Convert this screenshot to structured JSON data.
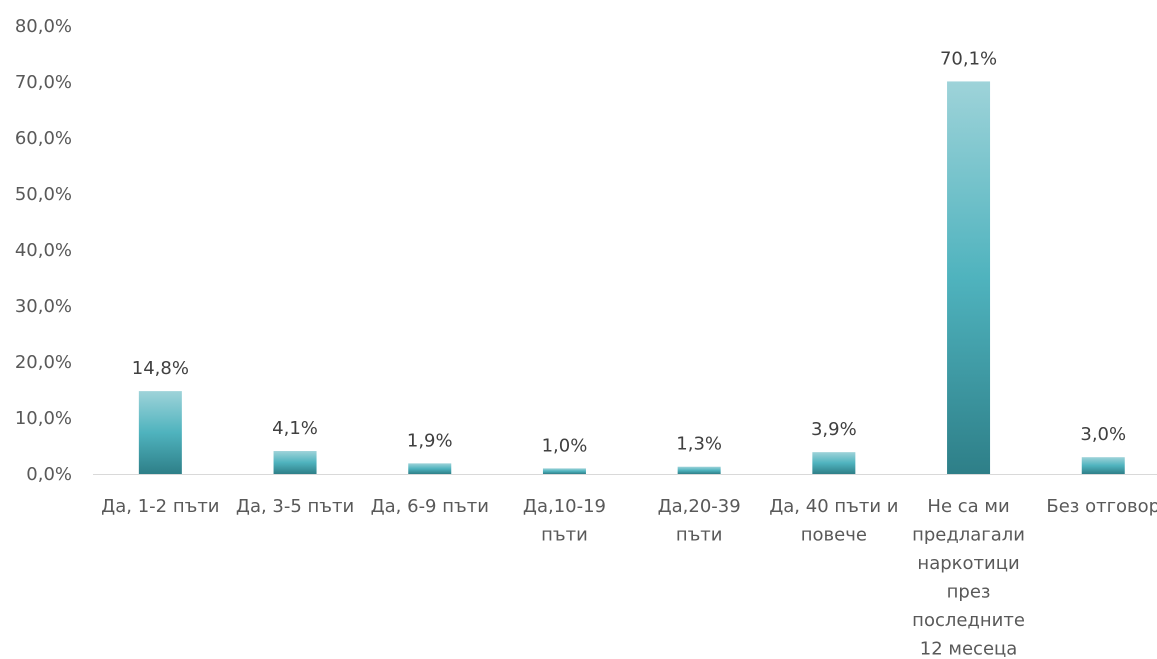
{
  "chart_data": {
    "type": "bar",
    "title": "",
    "xlabel": "",
    "ylabel": "",
    "ylim": [
      0,
      80
    ],
    "yticks": [
      "0,0%",
      "10,0%",
      "20,0%",
      "30,0%",
      "40,0%",
      "50,0%",
      "60,0%",
      "70,0%",
      "80,0%"
    ],
    "grid": false,
    "legend": "none",
    "categories": [
      "Да, 1-2 пъти",
      "Да, 3-5 пъти",
      "Да, 6-9 пъти",
      "Да,10-19 пъти",
      "Да,20-39 пъти",
      "Да, 40 пъти и повече",
      "Не са ми предлагали наркотици през последните 12 месеца",
      "Без отговор"
    ],
    "category_lines": [
      [
        "Да, 1-2 пъти"
      ],
      [
        "Да, 3-5 пъти"
      ],
      [
        "Да, 6-9 пъти"
      ],
      [
        "Да,10-19",
        "пъти"
      ],
      [
        "Да,20-39",
        "пъти"
      ],
      [
        "Да, 40 пъти и",
        "повече"
      ],
      [
        "Не са ми",
        "предлагали",
        "наркотици",
        "през",
        "последните",
        "12 месеца"
      ],
      [
        "Без отговор"
      ]
    ],
    "values": [
      14.8,
      4.1,
      1.9,
      1.0,
      1.3,
      3.9,
      70.1,
      3.0
    ],
    "data_labels": [
      "14,8%",
      "4,1%",
      "1,9%",
      "1,0%",
      "1,3%",
      "3,9%",
      "70,1%",
      "3,0%"
    ],
    "colors": {
      "bar_top": "#9ed3d9",
      "bar_mid": "#4fb3be",
      "bar_bottom": "#2e7f88",
      "axis": "#d9d9d9"
    }
  }
}
